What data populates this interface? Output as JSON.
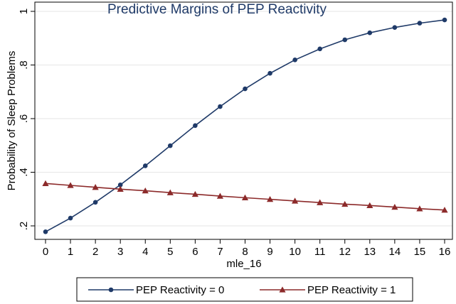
{
  "chart_data": {
    "type": "line",
    "title": "Predictive Margins of PEP Reactivity",
    "xlabel": "mle_16",
    "ylabel": "Probability of Sleep Problems",
    "x": [
      0,
      1,
      2,
      3,
      4,
      5,
      6,
      7,
      8,
      9,
      10,
      11,
      12,
      13,
      14,
      15,
      16
    ],
    "xlim": [
      0,
      16
    ],
    "ylim": [
      0.18,
      1.0
    ],
    "xticks": [
      "0",
      "1",
      "2",
      "3",
      "4",
      "5",
      "6",
      "7",
      "8",
      "9",
      "10",
      "11",
      "12",
      "13",
      "14",
      "15",
      "16"
    ],
    "yticks": [
      {
        "value": 0.2,
        "label": ".2"
      },
      {
        "value": 0.4,
        "label": ".4"
      },
      {
        "value": 0.6,
        "label": ".6"
      },
      {
        "value": 0.8,
        "label": ".8"
      },
      {
        "value": 1.0,
        "label": "1"
      }
    ],
    "grid": "horizontal",
    "legend_position": "bottom",
    "series": [
      {
        "name": "PEP Reactivity = 0",
        "marker": "circle",
        "color": "#1f3a68",
        "values": [
          0.178,
          0.229,
          0.288,
          0.353,
          0.424,
          0.499,
          0.574,
          0.645,
          0.711,
          0.769,
          0.819,
          0.86,
          0.894,
          0.92,
          0.94,
          0.956,
          0.968
        ]
      },
      {
        "name": "PEP Reactivity = 1",
        "marker": "triangle",
        "color": "#8c2a2a",
        "values": [
          0.358,
          0.351,
          0.344,
          0.337,
          0.331,
          0.324,
          0.318,
          0.311,
          0.305,
          0.299,
          0.293,
          0.287,
          0.281,
          0.276,
          0.27,
          0.264,
          0.259
        ]
      }
    ]
  }
}
